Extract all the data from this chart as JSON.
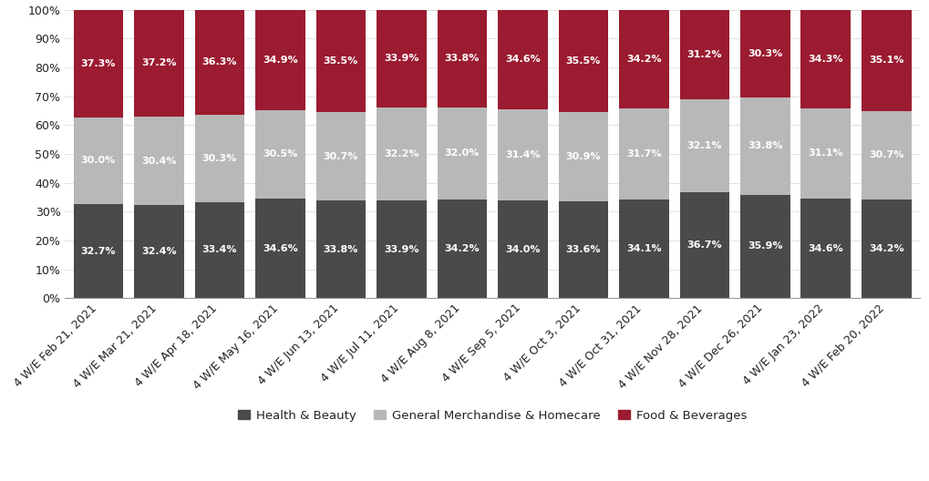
{
  "categories": [
    "4 W/E Feb 21, 2021",
    "4 W/E Mar 21, 2021",
    "4 W/E Apr 18, 2021",
    "4 W/E May 16, 2021",
    "4 W/E Jun 13, 2021",
    "4 W/E Jul 11, 2021",
    "4 W/E Aug 8, 2021",
    "4 W/E Sep 5, 2021",
    "4 W/E Oct 3, 2021",
    "4 W/E Oct 31, 2021",
    "4 W/E Nov 28, 2021",
    "4 W/E Dec 26, 2021",
    "4 W/E Jan 23, 2022",
    "4 W/E Feb 20, 2022"
  ],
  "health_beauty": [
    32.7,
    32.4,
    33.4,
    34.6,
    33.8,
    33.9,
    34.2,
    34.0,
    33.6,
    34.1,
    36.7,
    35.9,
    34.6,
    34.2
  ],
  "general_merchandise": [
    30.0,
    30.4,
    30.3,
    30.5,
    30.7,
    32.2,
    32.0,
    31.4,
    30.9,
    31.7,
    32.1,
    33.8,
    31.1,
    30.7
  ],
  "food_beverages": [
    37.3,
    37.2,
    36.3,
    34.9,
    35.5,
    33.9,
    33.8,
    34.6,
    35.5,
    34.2,
    31.2,
    30.3,
    34.3,
    35.1
  ],
  "color_health_beauty": "#4a4a4a",
  "color_general_merchandise": "#b8b8b8",
  "color_food_beverages": "#9b1b30",
  "background_color": "#ffffff",
  "legend_labels": [
    "Health & Beauty",
    "General Merchandise & Homecare",
    "Food & Beverages"
  ],
  "bar_width": 0.82,
  "label_fontsize": 8.0,
  "legend_fontsize": 9.5,
  "tick_fontsize": 9.0,
  "xlabel_rotation": 45
}
